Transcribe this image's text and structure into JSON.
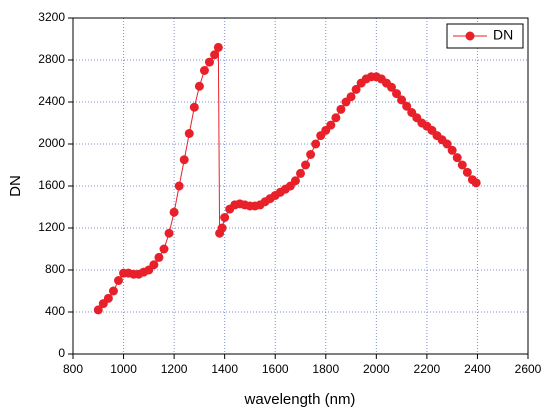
{
  "chart_data": {
    "type": "line",
    "xlabel": "wavelength (nm)",
    "ylabel": "DN",
    "xlim": [
      800,
      2600
    ],
    "xticks": [
      800,
      1000,
      1200,
      1400,
      1600,
      1800,
      2000,
      2200,
      2400,
      2600
    ],
    "ylim": [
      0,
      3200
    ],
    "yticks": [
      0,
      400,
      800,
      1200,
      1600,
      2000,
      2400,
      2800,
      3200
    ],
    "grid": true,
    "legend": "upper right",
    "x": [
      900,
      920,
      940,
      960,
      980,
      1000,
      1020,
      1040,
      1060,
      1080,
      1100,
      1120,
      1140,
      1160,
      1180,
      1200,
      1220,
      1240,
      1260,
      1280,
      1300,
      1320,
      1340,
      1360,
      1375,
      1380,
      1390,
      1400,
      1420,
      1440,
      1460,
      1480,
      1500,
      1520,
      1540,
      1560,
      1580,
      1600,
      1620,
      1640,
      1660,
      1680,
      1700,
      1720,
      1740,
      1760,
      1780,
      1800,
      1820,
      1840,
      1860,
      1880,
      1900,
      1920,
      1940,
      1960,
      1980,
      2000,
      2020,
      2040,
      2060,
      2080,
      2100,
      2120,
      2140,
      2160,
      2180,
      2200,
      2220,
      2240,
      2260,
      2280,
      2300,
      2320,
      2340,
      2360,
      2380,
      2395
    ],
    "series": [
      {
        "name": "DN",
        "color": "#e8202a",
        "values": [
          420,
          480,
          530,
          600,
          700,
          770,
          770,
          760,
          760,
          780,
          800,
          850,
          920,
          1000,
          1150,
          1350,
          1600,
          1850,
          2100,
          2350,
          2550,
          2700,
          2780,
          2850,
          2920,
          1150,
          1200,
          1300,
          1380,
          1420,
          1430,
          1420,
          1410,
          1410,
          1420,
          1450,
          1480,
          1510,
          1540,
          1570,
          1600,
          1650,
          1720,
          1800,
          1900,
          2000,
          2080,
          2130,
          2180,
          2250,
          2330,
          2400,
          2450,
          2520,
          2580,
          2620,
          2640,
          2640,
          2620,
          2580,
          2540,
          2480,
          2420,
          2360,
          2300,
          2250,
          2200,
          2170,
          2130,
          2080,
          2040,
          2000,
          1940,
          1870,
          1800,
          1730,
          1660,
          1630
        ]
      }
    ]
  }
}
